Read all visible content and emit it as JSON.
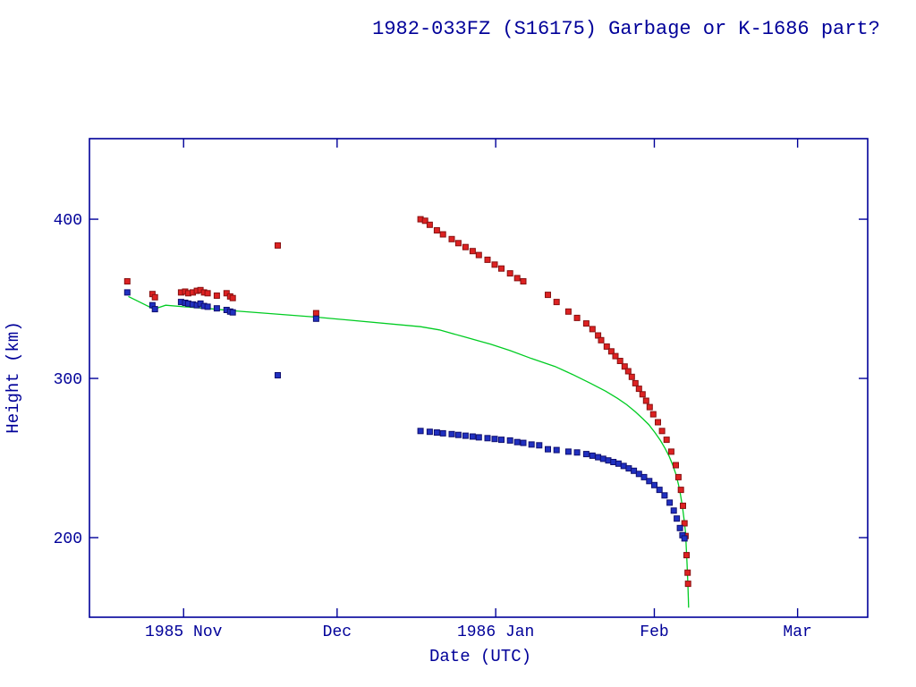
{
  "page": {
    "background": "#ffffff",
    "text_color": "#000099"
  },
  "chart_data": {
    "type": "scatter",
    "title": "1982-033FZ (S16175) Garbage or K-1686 part?",
    "xlabel": "Date (UTC)",
    "ylabel": "Height (km)",
    "x_unit": "days since 1985-11-01",
    "xlim": [
      -18.4,
      133.7
    ],
    "ylim": [
      150,
      450.6
    ],
    "grid": false,
    "legend": "none",
    "axis_color": "#000099",
    "x_ticks": [
      {
        "value": 0,
        "label": "1985 Nov"
      },
      {
        "value": 30,
        "label": "Dec"
      },
      {
        "value": 61,
        "label": "1986 Jan"
      },
      {
        "value": 92,
        "label": "Feb"
      },
      {
        "value": 120,
        "label": "Mar"
      }
    ],
    "y_ticks": [
      {
        "value": 200,
        "label": "200"
      },
      {
        "value": 300,
        "label": "300"
      },
      {
        "value": 400,
        "label": "400"
      }
    ],
    "series": [
      {
        "name": "predicted-mean-height",
        "type": "line",
        "color": "#00cc22",
        "points": [
          [
            -10.8,
            351.5
          ],
          [
            -5.8,
            343.5
          ],
          [
            -3.5,
            346
          ],
          [
            0,
            345
          ],
          [
            4.4,
            344
          ],
          [
            9.6,
            342.5
          ],
          [
            25.9,
            338.5
          ],
          [
            46.3,
            332.5
          ],
          [
            50,
            330.5
          ],
          [
            55,
            326
          ],
          [
            60,
            321.5
          ],
          [
            63.8,
            317.5
          ],
          [
            68,
            312.5
          ],
          [
            72.6,
            307.5
          ],
          [
            76,
            302.5
          ],
          [
            79.5,
            297
          ],
          [
            82.5,
            292
          ],
          [
            84.8,
            287.5
          ],
          [
            86.6,
            283.5
          ],
          [
            88.3,
            279
          ],
          [
            89.8,
            274.5
          ],
          [
            90.9,
            271
          ],
          [
            92.1,
            266
          ],
          [
            93.2,
            261
          ],
          [
            94.1,
            256
          ],
          [
            94.9,
            251
          ],
          [
            95.6,
            245.5
          ],
          [
            96.2,
            240
          ],
          [
            96.7,
            233.5
          ],
          [
            97.1,
            227
          ],
          [
            97.5,
            219.5
          ],
          [
            97.8,
            211.5
          ],
          [
            98.1,
            203
          ],
          [
            98.25,
            193.5
          ],
          [
            98.4,
            183
          ],
          [
            98.55,
            172
          ],
          [
            98.65,
            162
          ],
          [
            98.7,
            156
          ]
        ]
      },
      {
        "name": "apogee-height",
        "type": "scatter",
        "marker": "square",
        "color": "#dd2222",
        "edge_color": "#881111",
        "points": [
          [
            -11,
            361
          ],
          [
            -6.1,
            353
          ],
          [
            -5.6,
            351
          ],
          [
            -0.5,
            354
          ],
          [
            0.3,
            354.5
          ],
          [
            0.9,
            353.5
          ],
          [
            1.8,
            354
          ],
          [
            2.6,
            355
          ],
          [
            3.3,
            355.5
          ],
          [
            4,
            354
          ],
          [
            4.7,
            353.5
          ],
          [
            6.5,
            352
          ],
          [
            8.4,
            353.5
          ],
          [
            9.1,
            351.5
          ],
          [
            9.6,
            350.5
          ],
          [
            18.4,
            383.5
          ],
          [
            25.9,
            341
          ],
          [
            46.3,
            400
          ],
          [
            47.2,
            399
          ],
          [
            48.1,
            396.5
          ],
          [
            49.5,
            393
          ],
          [
            50.7,
            390.5
          ],
          [
            52.4,
            387.5
          ],
          [
            53.7,
            385
          ],
          [
            55.1,
            382.5
          ],
          [
            56.5,
            380
          ],
          [
            57.7,
            377.5
          ],
          [
            59.4,
            374.5
          ],
          [
            60.8,
            371.5
          ],
          [
            62.1,
            369
          ],
          [
            63.8,
            366
          ],
          [
            65.2,
            363
          ],
          [
            66.4,
            361
          ],
          [
            71.2,
            352.5
          ],
          [
            72.9,
            348
          ],
          [
            75.2,
            342
          ],
          [
            76.9,
            338
          ],
          [
            78.7,
            334.5
          ],
          [
            79.9,
            331
          ],
          [
            81,
            327
          ],
          [
            81.6,
            324
          ],
          [
            82.7,
            320
          ],
          [
            83.6,
            317
          ],
          [
            84.4,
            314
          ],
          [
            85.3,
            311
          ],
          [
            86.2,
            307.5
          ],
          [
            86.9,
            304.5
          ],
          [
            87.6,
            301
          ],
          [
            88.3,
            297
          ],
          [
            89,
            293.5
          ],
          [
            89.7,
            290
          ],
          [
            90.4,
            286
          ],
          [
            91.1,
            282
          ],
          [
            91.8,
            277.5
          ],
          [
            92.7,
            272.5
          ],
          [
            93.5,
            267
          ],
          [
            94.4,
            261.5
          ],
          [
            95.3,
            254
          ],
          [
            96.2,
            245.5
          ],
          [
            96.7,
            238
          ],
          [
            97.2,
            230
          ],
          [
            97.6,
            220
          ],
          [
            97.9,
            209
          ],
          [
            98.1,
            201
          ],
          [
            98.3,
            189
          ],
          [
            98.5,
            178
          ],
          [
            98.6,
            171
          ]
        ]
      },
      {
        "name": "perigee-height",
        "type": "scatter",
        "marker": "square",
        "color": "#2030c0",
        "edge_color": "#101070",
        "points": [
          [
            -11,
            354
          ],
          [
            -6.1,
            346
          ],
          [
            -5.6,
            343.5
          ],
          [
            -0.5,
            348
          ],
          [
            0.3,
            347.5
          ],
          [
            0.9,
            347
          ],
          [
            1.8,
            346.5
          ],
          [
            2.6,
            346
          ],
          [
            3.3,
            347
          ],
          [
            4,
            345.5
          ],
          [
            4.7,
            345
          ],
          [
            6.5,
            344
          ],
          [
            8.4,
            343
          ],
          [
            9.1,
            342
          ],
          [
            9.6,
            341.5
          ],
          [
            18.4,
            302
          ],
          [
            25.9,
            337.5
          ],
          [
            46.3,
            267
          ],
          [
            48.1,
            266.5
          ],
          [
            49.5,
            266
          ],
          [
            50.7,
            265.5
          ],
          [
            52.4,
            265
          ],
          [
            53.7,
            264.5
          ],
          [
            55.1,
            264
          ],
          [
            56.5,
            263.5
          ],
          [
            57.7,
            263
          ],
          [
            59.4,
            262.5
          ],
          [
            60.8,
            262
          ],
          [
            62.1,
            261.5
          ],
          [
            63.8,
            261
          ],
          [
            65.2,
            260
          ],
          [
            66.4,
            259.5
          ],
          [
            68,
            258.5
          ],
          [
            69.5,
            258
          ],
          [
            71.2,
            255.5
          ],
          [
            72.9,
            255
          ],
          [
            75.2,
            254
          ],
          [
            76.9,
            253.5
          ],
          [
            78.7,
            252.5
          ],
          [
            79.9,
            251.5
          ],
          [
            81,
            250.5
          ],
          [
            82,
            249.5
          ],
          [
            83,
            248.5
          ],
          [
            84,
            247.5
          ],
          [
            85,
            246.5
          ],
          [
            86,
            245
          ],
          [
            87,
            243.5
          ],
          [
            88,
            242
          ],
          [
            89,
            240
          ],
          [
            90,
            238
          ],
          [
            91,
            235.5
          ],
          [
            92,
            233
          ],
          [
            93,
            230
          ],
          [
            94,
            226.5
          ],
          [
            95,
            222
          ],
          [
            95.8,
            217
          ],
          [
            96.4,
            212
          ],
          [
            97,
            206
          ],
          [
            97.5,
            201.5
          ],
          [
            97.9,
            199.5
          ]
        ]
      }
    ]
  }
}
